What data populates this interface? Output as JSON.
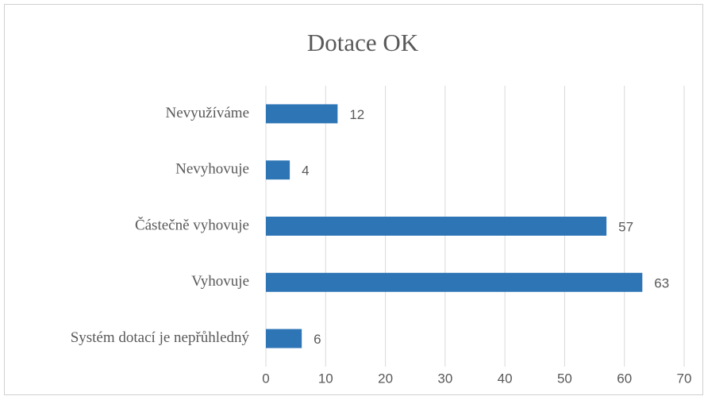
{
  "chart_data": {
    "type": "bar",
    "orientation": "horizontal",
    "title": "Dotace OK",
    "categories": [
      "Nevyužíváme",
      "Nevyhovuje",
      "Částečně vyhovuje",
      "Vyhovuje",
      "Systém dotací je nepřůhledný"
    ],
    "values": [
      12,
      4,
      57,
      63,
      6
    ],
    "color": "#2e75b6",
    "xlim": [
      0,
      70
    ],
    "xticks": [
      0,
      10,
      20,
      30,
      40,
      50,
      60,
      70
    ],
    "grid": true
  }
}
